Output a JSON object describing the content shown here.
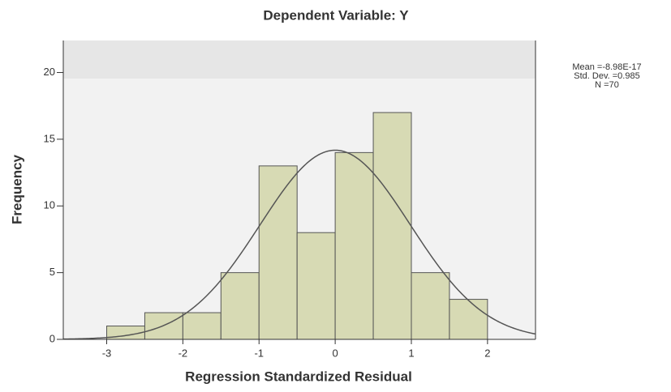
{
  "chart_data": {
    "type": "histogram",
    "title": "Dependent Variable: Y",
    "xlabel": "Regression Standardized Residual",
    "ylabel": "Frequency",
    "bins": [
      -3,
      -2.5,
      -2,
      -1.5,
      -1,
      -0.5,
      0,
      0.5,
      1,
      1.5,
      2
    ],
    "values": [
      1,
      2,
      2,
      5,
      13,
      8,
      14,
      17,
      5,
      3
    ],
    "color": "#d7dab4",
    "xlim": [
      -3.57,
      2.63
    ],
    "ylim": [
      0,
      22.4
    ],
    "xticks": [
      -3,
      -2,
      -1,
      0,
      1,
      2
    ],
    "yticks": [
      0,
      5,
      10,
      15,
      20
    ],
    "stats": [
      {
        "value": -8.98e-17,
        "label": "Mean =-8.98E-17"
      },
      {
        "value": 0.985,
        "label": "Std. Dev. =0.985"
      },
      {
        "value": 70,
        "label": "N =70"
      }
    ],
    "curve_color": "#555555"
  }
}
